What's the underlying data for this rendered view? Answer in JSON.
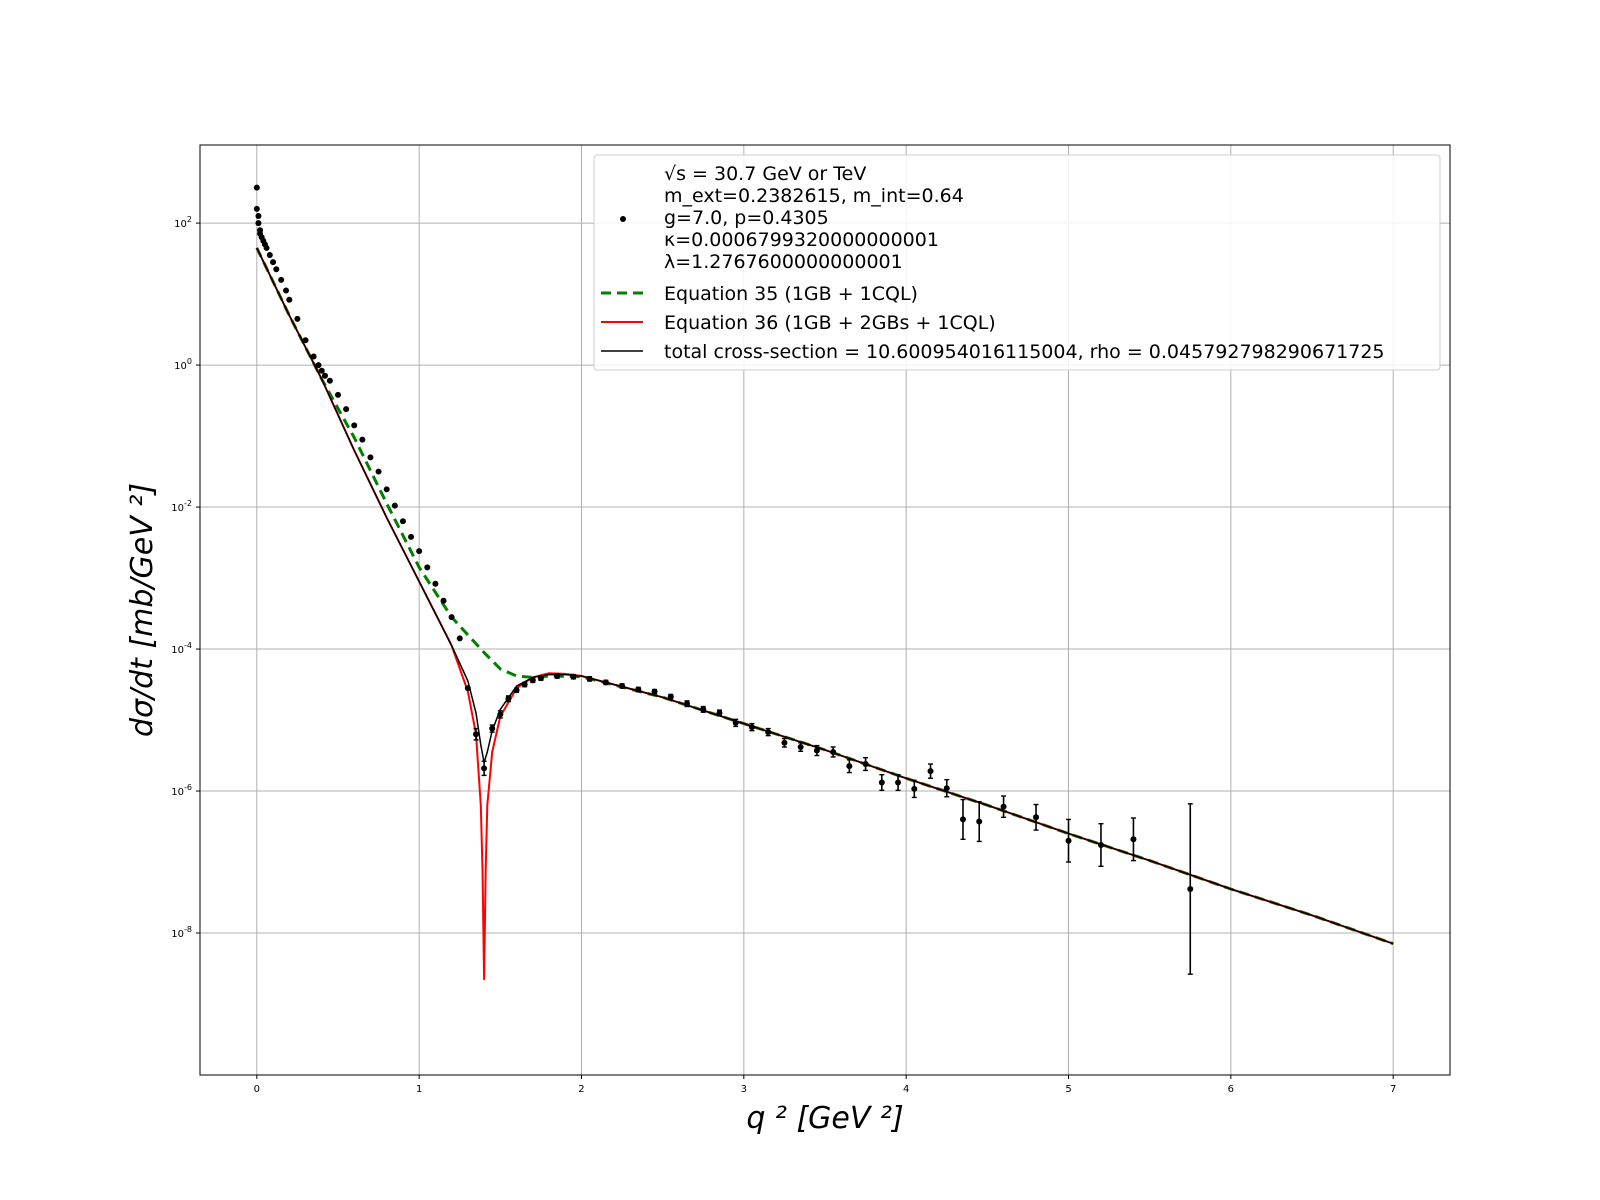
{
  "chart_data": {
    "type": "scatter",
    "xlabel": "q ² [GeV ²]",
    "ylabel": "dσ/dt  [mb/GeV ²]",
    "xlim": [
      -0.35,
      7.35
    ],
    "ylim_log10": [
      -10,
      3.1
    ],
    "yscale": "log",
    "grid": true,
    "legend_position": "top-right",
    "x_ticks": [
      0,
      1,
      2,
      3,
      4,
      5,
      6,
      7
    ],
    "y_ticks": [
      {
        "exp": 2,
        "label": "10^2"
      },
      {
        "exp": 0,
        "label": "10^0"
      },
      {
        "exp": -2,
        "label": "10^-2"
      },
      {
        "exp": -4,
        "label": "10^-4"
      },
      {
        "exp": -6,
        "label": "10^-6"
      },
      {
        "exp": -8,
        "label": "10^-8"
      }
    ],
    "legend": {
      "data_lines": [
        "√s = 30.7 GeV or TeV",
        "m_ext=0.2382615, m_int=0.64",
        "g=7.0, p=0.4305",
        "κ=0.0006799320000000001",
        "λ=1.2767600000000001"
      ],
      "eq35": "Equation 35 (1GB + 1CQL)",
      "eq36": "Equation 36 (1GB + 2GBs + 1CQL)",
      "total": "total cross-section = 10.600954016115004, rho = 0.045792798290671725"
    },
    "colors": {
      "data": "#000000",
      "eq35": "#008000",
      "eq36": "#ff0000",
      "total": "#000000",
      "grid": "#b0b0b0"
    },
    "series": [
      {
        "name": "Equation 35 (1GB + 1CQL)",
        "style": "dashed",
        "x": [
          0,
          0.2,
          0.4,
          0.6,
          0.8,
          1.0,
          1.2,
          1.4,
          1.5,
          1.6,
          1.7,
          1.8,
          2.0,
          2.5,
          3.0,
          3.5,
          4.0,
          4.5,
          5.0,
          5.5,
          6.0,
          6.5,
          7.0
        ],
        "log10_y": [
          1.65,
          0.7,
          -0.2,
          -1.02,
          -1.95,
          -2.85,
          -3.55,
          -4.05,
          -4.28,
          -4.38,
          -4.4,
          -4.38,
          -4.39,
          -4.68,
          -5.05,
          -5.42,
          -5.82,
          -6.2,
          -6.6,
          -6.98,
          -7.38,
          -7.75,
          -8.15
        ]
      },
      {
        "name": "Equation 36 (1GB + 2GBs + 1CQL)",
        "style": "solid",
        "x": [
          0,
          0.2,
          0.4,
          0.6,
          0.8,
          1.0,
          1.1,
          1.2,
          1.3,
          1.35,
          1.38,
          1.39,
          1.4,
          1.41,
          1.42,
          1.45,
          1.5,
          1.6,
          1.7,
          1.8,
          1.9,
          2.0,
          2.5,
          3.0,
          3.5,
          4.0,
          4.5,
          5.0,
          5.5,
          6.0,
          6.5,
          7.0
        ],
        "log10_y": [
          1.65,
          0.7,
          -0.2,
          -1.2,
          -2.15,
          -3.05,
          -3.5,
          -3.95,
          -4.6,
          -5.2,
          -6.2,
          -7.1,
          -8.65,
          -7.1,
          -6.2,
          -5.45,
          -4.95,
          -4.55,
          -4.4,
          -4.34,
          -4.35,
          -4.38,
          -4.68,
          -5.05,
          -5.42,
          -5.82,
          -6.2,
          -6.6,
          -6.98,
          -7.38,
          -7.75,
          -8.15
        ]
      },
      {
        "name": "total cross-section = 10.600954016115004, rho = 0.045792798290671725",
        "style": "solid",
        "x": [
          0,
          0.2,
          0.4,
          0.6,
          0.8,
          1.0,
          1.1,
          1.2,
          1.3,
          1.35,
          1.38,
          1.4,
          1.42,
          1.45,
          1.5,
          1.6,
          1.7,
          1.8,
          1.9,
          2.0,
          2.5,
          3.0,
          3.5,
          4.0,
          4.5,
          5.0,
          5.5,
          6.0,
          6.5,
          7.0
        ],
        "log10_y": [
          1.65,
          0.7,
          -0.2,
          -1.2,
          -2.15,
          -3.05,
          -3.5,
          -3.95,
          -4.45,
          -4.9,
          -5.35,
          -5.6,
          -5.45,
          -5.15,
          -4.85,
          -4.52,
          -4.4,
          -4.36,
          -4.36,
          -4.38,
          -4.68,
          -5.05,
          -5.42,
          -5.82,
          -6.2,
          -6.6,
          -6.98,
          -7.38,
          -7.75,
          -8.15
        ]
      }
    ],
    "data_points": {
      "x": [
        0.0,
        0.0,
        0.01,
        0.01,
        0.02,
        0.02,
        0.03,
        0.04,
        0.05,
        0.06,
        0.08,
        0.1,
        0.12,
        0.15,
        0.18,
        0.2,
        0.25,
        0.3,
        0.35,
        0.38,
        0.4,
        0.42,
        0.45,
        0.5,
        0.55,
        0.6,
        0.65,
        0.7,
        0.75,
        0.8,
        0.85,
        0.9,
        0.95,
        1.0,
        1.05,
        1.1,
        1.15,
        1.2,
        1.25,
        1.3,
        1.35,
        1.4,
        1.45,
        1.5,
        1.55,
        1.6,
        1.65,
        1.7,
        1.75,
        1.85,
        1.95,
        2.05,
        2.15,
        2.25,
        2.35,
        2.45,
        2.55,
        2.65,
        2.75,
        2.85,
        2.95,
        3.05,
        3.15,
        3.25,
        3.35,
        3.45,
        3.55,
        3.65,
        3.75,
        3.85,
        3.95,
        4.05,
        4.15,
        4.25,
        4.35,
        4.45,
        4.6,
        4.8,
        5.0,
        5.2,
        5.4,
        5.75
      ],
      "log10_y": [
        2.5,
        2.2,
        2.1,
        2.0,
        1.9,
        1.85,
        1.8,
        1.75,
        1.7,
        1.65,
        1.55,
        1.45,
        1.35,
        1.2,
        1.05,
        0.92,
        0.65,
        0.35,
        0.12,
        0.0,
        -0.08,
        -0.15,
        -0.22,
        -0.42,
        -0.62,
        -0.85,
        -1.05,
        -1.3,
        -1.5,
        -1.75,
        -1.98,
        -2.2,
        -2.42,
        -2.62,
        -2.85,
        -3.08,
        -3.32,
        -3.55,
        -3.85,
        -4.55,
        -5.2,
        -5.68,
        -5.12,
        -4.92,
        -4.7,
        -4.58,
        -4.5,
        -4.44,
        -4.41,
        -4.38,
        -4.39,
        -4.42,
        -4.47,
        -4.52,
        -4.57,
        -4.6,
        -4.67,
        -4.77,
        -4.85,
        -4.9,
        -5.04,
        -5.1,
        -5.17,
        -5.32,
        -5.38,
        -5.43,
        -5.45,
        -5.65,
        -5.62,
        -5.88,
        -5.88,
        -5.97,
        -5.72,
        -5.96,
        -6.4,
        -6.43,
        -6.22,
        -6.37,
        -6.7,
        -6.76,
        -6.68,
        -7.38
      ],
      "err_log10": [
        0,
        0,
        0,
        0,
        0,
        0,
        0,
        0,
        0,
        0,
        0,
        0,
        0,
        0,
        0,
        0,
        0,
        0,
        0,
        0,
        0,
        0,
        0,
        0,
        0,
        0,
        0,
        0,
        0,
        0,
        0,
        0,
        0,
        0,
        0,
        0,
        0,
        0,
        0,
        0,
        0.08,
        0.1,
        0.05,
        0.05,
        0.04,
        0.03,
        0.03,
        0.03,
        0.03,
        0.03,
        0.03,
        0.03,
        0.03,
        0.03,
        0.03,
        0.03,
        0.03,
        0.04,
        0.04,
        0.04,
        0.05,
        0.05,
        0.05,
        0.06,
        0.06,
        0.07,
        0.07,
        0.09,
        0.09,
        0.11,
        0.11,
        0.12,
        0.1,
        0.12,
        0.28,
        0.28,
        0.15,
        0.18,
        0.3,
        0.3,
        0.3,
        1.2
      ]
    }
  }
}
